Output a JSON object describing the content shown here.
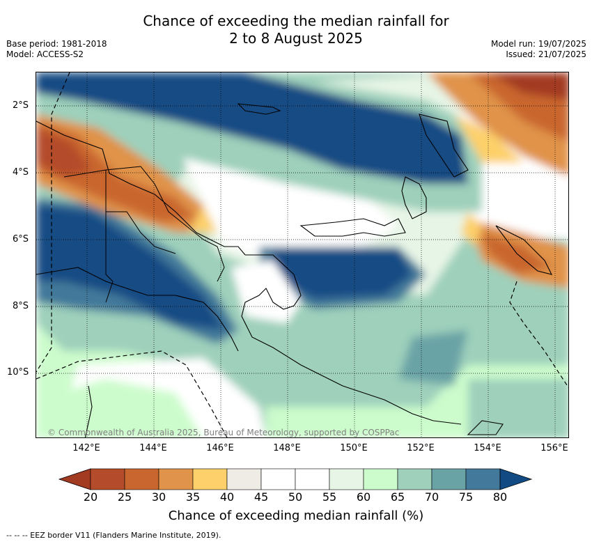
{
  "title_line1": "Chance of exceeding the median rainfall for",
  "title_line2": "2 to 8 August 2025",
  "base_period": "Base period: 1981-2018",
  "model": "Model: ACCESS-S2",
  "model_run": "Model run: 19/07/2025",
  "issued": "Issued: 21/07/2025",
  "copyright": "© Commonwealth of Australia 2025, Bureau of Meteorology, supported by COSPPac",
  "lat_labels": [
    "2°S",
    "4°S",
    "6°S",
    "8°S",
    "10°S"
  ],
  "lon_labels": [
    "142°E",
    "144°E",
    "146°E",
    "148°E",
    "150°E",
    "152°E",
    "154°E",
    "156°E"
  ],
  "colorbar": {
    "ticks": [
      "20",
      "25",
      "30",
      "35",
      "40",
      "45",
      "50",
      "55",
      "60",
      "65",
      "70",
      "75",
      "80"
    ],
    "colors": [
      "#a33a22",
      "#b44b2a",
      "#c9662f",
      "#e0934a",
      "#fdd06b",
      "#efece6",
      "#ffffff",
      "#ffffff",
      "#e7f5e6",
      "#ccfccc",
      "#9ed0bb",
      "#6aa3a6",
      "#43799a",
      "#124b84"
    ],
    "title": "Chance of exceeding median rainfall (%)"
  },
  "legend_text": "-- -- -- EEZ border V11 (Flanders Marine Institute, 2019)."
}
